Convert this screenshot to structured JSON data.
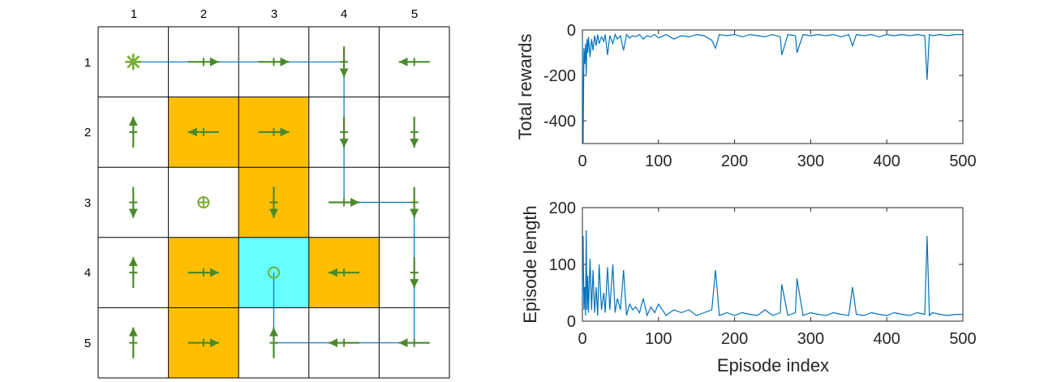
{
  "grid": {
    "rows": 5,
    "cols": 5,
    "col_labels": [
      "1",
      "2",
      "3",
      "4",
      "5"
    ],
    "row_labels": [
      "1",
      "2",
      "3",
      "4",
      "5"
    ],
    "colors": {
      "obstacle": "#FFBF00",
      "goal": "#66FFFF",
      "arrow": "#4A8A2A",
      "icon": "#77AC30",
      "path": "#0072BD",
      "line": "#000000"
    },
    "cell_types": [
      [
        "empty",
        "empty",
        "empty",
        "empty",
        "empty"
      ],
      [
        "empty",
        "obstacle",
        "obstacle",
        "empty",
        "empty"
      ],
      [
        "empty",
        "empty",
        "obstacle",
        "empty",
        "empty"
      ],
      [
        "empty",
        "obstacle",
        "goal",
        "obstacle",
        "empty"
      ],
      [
        "empty",
        "obstacle",
        "empty",
        "empty",
        "empty"
      ]
    ],
    "policy": [
      [
        "start",
        "right",
        "right",
        "down",
        "left"
      ],
      [
        "up",
        "left",
        "right",
        "down",
        "down"
      ],
      [
        "down",
        "stay",
        "down",
        "right",
        "down"
      ],
      [
        "up",
        "right",
        "stay",
        "left",
        "down"
      ],
      [
        "up",
        "right",
        "up",
        "left",
        "left"
      ]
    ],
    "markers": [
      {
        "row": 1,
        "col": 1,
        "icon": "asterisk-start-icon"
      },
      {
        "row": 3,
        "col": 2,
        "icon": "circle-plus-icon"
      },
      {
        "row": 4,
        "col": 3,
        "icon": "circle-target-icon"
      }
    ],
    "trajectory": [
      [
        1,
        1
      ],
      [
        1,
        2
      ],
      [
        1,
        3
      ],
      [
        1,
        4
      ],
      [
        2,
        4
      ],
      [
        3,
        4
      ],
      [
        3,
        5
      ],
      [
        4,
        5
      ],
      [
        5,
        5
      ],
      [
        5,
        4
      ],
      [
        5,
        3
      ],
      [
        4,
        3
      ]
    ]
  },
  "chart_data": [
    {
      "type": "line",
      "title": "",
      "xlabel": "",
      "ylabel": "Total rewards",
      "xlim": [
        0,
        500
      ],
      "ylim": [
        -500,
        0
      ],
      "xticks": [
        0,
        100,
        200,
        300,
        400,
        500
      ],
      "yticks": [
        0,
        -200,
        -400
      ],
      "xtick_labels": [
        "0",
        "100",
        "200",
        "300",
        "400",
        "500"
      ],
      "ytick_labels": [
        "0",
        "-200",
        "-400"
      ],
      "color": "#0072BD",
      "series": [
        {
          "x": [
            0,
            1,
            2,
            3,
            4,
            5,
            6,
            7,
            8,
            10,
            12,
            14,
            16,
            18,
            20,
            22,
            25,
            28,
            30,
            33,
            36,
            40,
            43,
            46,
            50,
            54,
            58,
            62,
            66,
            70,
            75,
            80,
            85,
            90,
            95,
            100,
            110,
            120,
            130,
            140,
            150,
            160,
            170,
            175,
            180,
            190,
            200,
            210,
            220,
            230,
            240,
            250,
            260,
            262,
            270,
            280,
            282,
            290,
            300,
            310,
            320,
            330,
            340,
            350,
            355,
            360,
            370,
            380,
            390,
            400,
            410,
            420,
            430,
            440,
            450,
            453,
            456,
            460,
            470,
            480,
            490,
            500
          ],
          "values": [
            -30,
            -500,
            -80,
            -150,
            -60,
            -200,
            -40,
            -100,
            -30,
            -120,
            -40,
            -90,
            -25,
            -70,
            -20,
            -60,
            -30,
            -50,
            -20,
            -110,
            -25,
            -60,
            -20,
            -40,
            -25,
            -90,
            -20,
            -35,
            -25,
            -30,
            -20,
            -40,
            -25,
            -30,
            -20,
            -35,
            -20,
            -40,
            -25,
            -30,
            -20,
            -25,
            -45,
            -80,
            -20,
            -25,
            -20,
            -30,
            -20,
            -25,
            -30,
            -20,
            -30,
            -110,
            -20,
            -25,
            -100,
            -20,
            -25,
            -20,
            -25,
            -20,
            -30,
            -20,
            -70,
            -20,
            -25,
            -20,
            -30,
            -20,
            -25,
            -20,
            -25,
            -20,
            -25,
            -220,
            -20,
            -25,
            -20,
            -25,
            -20,
            -20
          ]
        }
      ]
    },
    {
      "type": "line",
      "title": "",
      "xlabel": "Episode index",
      "ylabel": "Episode length",
      "xlim": [
        0,
        500
      ],
      "ylim": [
        0,
        200
      ],
      "xticks": [
        0,
        100,
        200,
        300,
        400,
        500
      ],
      "yticks": [
        0,
        100,
        200
      ],
      "xtick_labels": [
        "0",
        "100",
        "200",
        "300",
        "400",
        "500"
      ],
      "ytick_labels": [
        "0",
        "100",
        "200"
      ],
      "color": "#0072BD",
      "series": [
        {
          "x": [
            0,
            1,
            2,
            3,
            4,
            5,
            6,
            7,
            8,
            10,
            12,
            14,
            16,
            18,
            20,
            22,
            25,
            28,
            30,
            33,
            36,
            40,
            43,
            46,
            50,
            54,
            58,
            62,
            66,
            70,
            75,
            80,
            85,
            90,
            95,
            100,
            110,
            120,
            130,
            140,
            150,
            160,
            170,
            175,
            180,
            190,
            200,
            210,
            220,
            230,
            240,
            250,
            260,
            262,
            270,
            280,
            282,
            290,
            300,
            310,
            320,
            330,
            340,
            350,
            355,
            360,
            370,
            380,
            390,
            400,
            410,
            420,
            430,
            440,
            450,
            453,
            456,
            460,
            470,
            480,
            490,
            500
          ],
          "values": [
            40,
            150,
            20,
            60,
            10,
            160,
            20,
            80,
            15,
            110,
            20,
            90,
            15,
            60,
            10,
            100,
            20,
            50,
            15,
            95,
            20,
            100,
            15,
            40,
            20,
            90,
            10,
            30,
            20,
            25,
            15,
            40,
            10,
            25,
            15,
            30,
            10,
            20,
            15,
            20,
            10,
            15,
            20,
            90,
            10,
            15,
            10,
            15,
            12,
            10,
            20,
            10,
            15,
            65,
            10,
            15,
            75,
            10,
            15,
            12,
            10,
            15,
            12,
            10,
            60,
            12,
            10,
            15,
            12,
            10,
            15,
            12,
            10,
            15,
            12,
            150,
            10,
            15,
            12,
            10,
            12,
            12
          ]
        }
      ]
    }
  ]
}
